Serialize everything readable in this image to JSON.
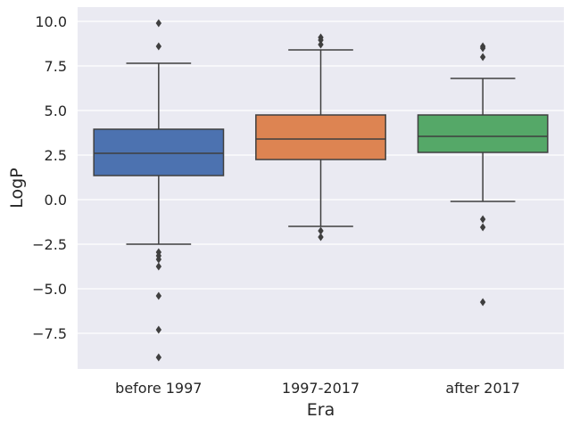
{
  "chart_data": {
    "type": "box",
    "xlabel": "Era",
    "ylabel": "LogP",
    "ylim": [
      -9.5,
      10.8
    ],
    "yticks": [
      10.0,
      7.5,
      5.0,
      2.5,
      0.0,
      -2.5,
      -5.0,
      -7.5
    ],
    "ytick_labels": [
      "10.0",
      "7.5",
      "5.0",
      "2.5",
      "0.0",
      "−2.5",
      "−5.0",
      "−7.5"
    ],
    "grid": true,
    "background": "#eaeaf2",
    "categories": [
      "before 1997",
      "1997-2017",
      "after 2017"
    ],
    "boxes": [
      {
        "category": "before 1997",
        "color": "#4c72b0",
        "whisker_low": -2.5,
        "q1": 1.35,
        "median": 2.6,
        "q3": 3.95,
        "whisker_high": 7.65,
        "outliers": [
          9.9,
          8.6,
          -2.95,
          -3.15,
          -3.35,
          -3.75,
          -5.4,
          -7.3,
          -8.85
        ]
      },
      {
        "category": "1997-2017",
        "color": "#dd8452",
        "whisker_low": -1.5,
        "q1": 2.25,
        "median": 3.4,
        "q3": 4.75,
        "whisker_high": 8.4,
        "outliers": [
          9.1,
          8.95,
          8.7,
          -1.75,
          -2.1
        ]
      },
      {
        "category": "after 2017",
        "color": "#55a868",
        "whisker_low": -0.1,
        "q1": 2.65,
        "median": 3.55,
        "q3": 4.75,
        "whisker_high": 6.8,
        "outliers": [
          8.6,
          8.5,
          8.0,
          -1.1,
          -1.55,
          -5.75
        ]
      }
    ]
  }
}
